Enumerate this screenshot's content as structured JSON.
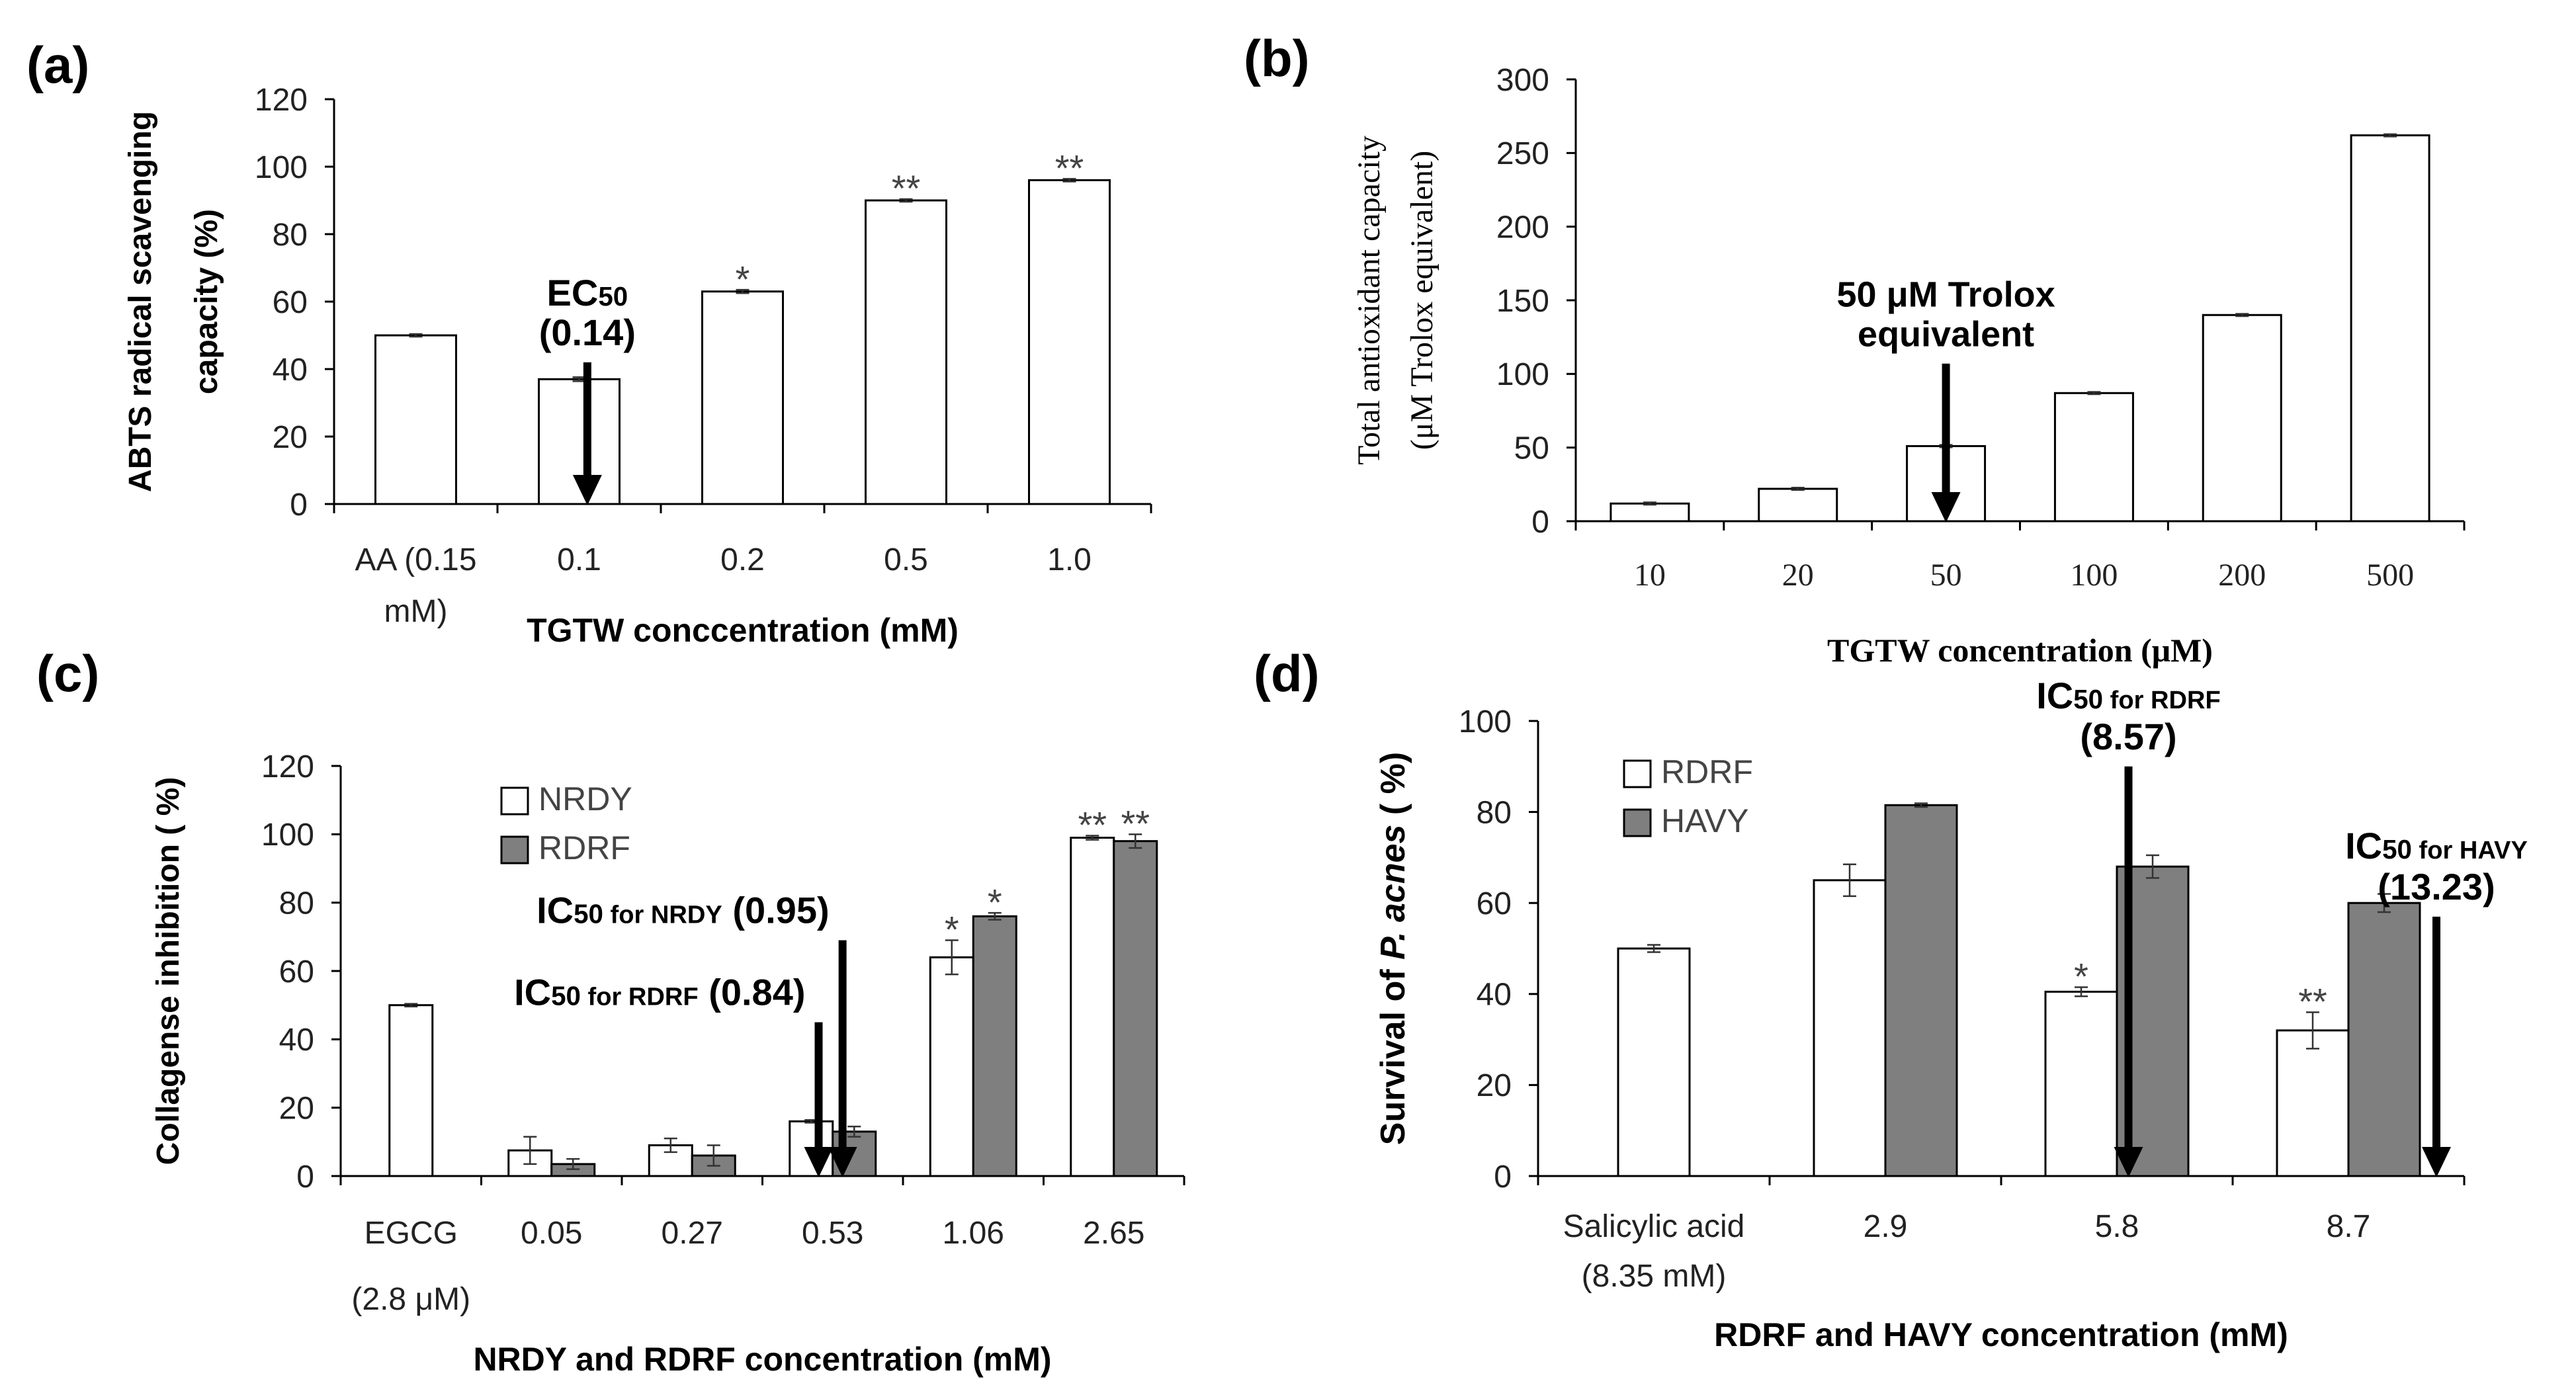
{
  "panels": [
    {
      "id": "a",
      "label": "(a)"
    },
    {
      "id": "b",
      "label": "(b)"
    },
    {
      "id": "c",
      "label": "(c)"
    },
    {
      "id": "d",
      "label": "(d)"
    }
  ],
  "chart_data": [
    {
      "panel": "a",
      "type": "bar",
      "categories": [
        "AA (0.15\nmM)",
        "0.1",
        "0.2",
        "0.5",
        "1.0"
      ],
      "series": [
        {
          "values": [
            50,
            37,
            63,
            90,
            96
          ],
          "errors": [
            0.4,
            0.6,
            0.5,
            0.4,
            0.4
          ],
          "color": "#ffffff"
        }
      ],
      "significance": [
        "",
        "",
        "*",
        "**",
        "**"
      ],
      "xlabel": "TGTW conccentration (mM)",
      "ylabel": [
        "ABTS radical scavenging",
        "capacity (%)"
      ],
      "ylim": [
        0,
        120
      ],
      "yticks": [
        0,
        20,
        40,
        60,
        80,
        100,
        120
      ],
      "grid": false,
      "annotations": [
        {
          "lines": [
            [
              {
                "t": "EC"
              },
              {
                "t": "50",
                "sub": true
              }
            ],
            [
              {
                "t": "(0.14)"
              }
            ]
          ],
          "at_x": 1.55,
          "arrow_top": 42
        }
      ]
    },
    {
      "panel": "b",
      "type": "bar",
      "categories": [
        "10",
        "20",
        "50",
        "100",
        "200",
        "500"
      ],
      "series": [
        {
          "values": [
            12,
            22,
            51,
            87,
            140,
            262
          ],
          "errors": [
            0.8,
            0.8,
            0.8,
            0.8,
            0.8,
            0.8
          ],
          "color": "#ffffff"
        }
      ],
      "xlabel": "TGTW  concentration (μM)",
      "ylabel": [
        "Total antioxidant capacity",
        "(μM Trolox equivalent)"
      ],
      "ylim": [
        0,
        300
      ],
      "yticks": [
        0,
        50,
        100,
        150,
        200,
        250,
        300
      ],
      "grid": false,
      "annotations": [
        {
          "lines": [
            [
              {
                "t": "50 μM Trolox"
              }
            ],
            [
              {
                "t": "equivalent"
              }
            ]
          ],
          "at_x": 2.5,
          "arrow_top": 107
        }
      ]
    },
    {
      "panel": "c",
      "type": "bar",
      "categories": [
        "EGCG\n(2.8 μM)",
        "0.05",
        "0.27",
        "0.53",
        "1.06",
        "2.65"
      ],
      "series": [
        {
          "name": "NRDY",
          "values": [
            50,
            7.5,
            9,
            16,
            64,
            99
          ],
          "errors": [
            0.4,
            4,
            2,
            0.4,
            5,
            0.6
          ],
          "color": "#ffffff"
        },
        {
          "name": "RDRF",
          "values": [
            null,
            3.5,
            6,
            13,
            76,
            98
          ],
          "errors": [
            0,
            1.5,
            3,
            1.5,
            1,
            2
          ],
          "color": "#7f7f7f"
        }
      ],
      "significance": [
        [
          "",
          "",
          "",
          "",
          "*",
          "**"
        ],
        [
          "",
          "",
          "",
          "",
          "*",
          "**"
        ]
      ],
      "xlabel": "NRDY and  RDRF concentration (mM)",
      "ylabel": [
        "Collagense inhibition ( %)"
      ],
      "ylim": [
        0,
        120
      ],
      "yticks": [
        0,
        20,
        40,
        60,
        80,
        100,
        120
      ],
      "grid": false,
      "legend": "top-left",
      "annotations": [
        {
          "lines": [
            [
              {
                "t": "IC"
              },
              {
                "t": "50",
                "sub": true
              },
              {
                "t": " for NRDY",
                "small": true
              },
              {
                "t": " (0.95)"
              }
            ]
          ],
          "at_x": 3.57,
          "arrow_top": 69
        },
        {
          "lines": [
            [
              {
                "t": "IC"
              },
              {
                "t": "50",
                "sub": true
              },
              {
                "t": " for RDRF",
                "small": true
              },
              {
                "t": " (0.84)"
              }
            ]
          ],
          "at_x": 3.4,
          "arrow_top": 45
        }
      ]
    },
    {
      "panel": "d",
      "type": "bar",
      "categories": [
        "Salicylic acid\n(8.35 mM)",
        "2.9",
        "5.8",
        "8.7"
      ],
      "series": [
        {
          "name": "RDRF",
          "values": [
            50,
            65,
            40.5,
            32
          ],
          "errors": [
            0.8,
            3.5,
            1,
            4
          ],
          "color": "#ffffff"
        },
        {
          "name": "HAVY",
          "values": [
            null,
            81.5,
            68,
            60
          ],
          "errors": [
            0,
            0.4,
            2.5,
            2
          ],
          "color": "#7f7f7f"
        }
      ],
      "significance": [
        [
          "",
          "",
          "*",
          "**"
        ],
        [
          "",
          "",
          "",
          ""
        ]
      ],
      "xlabel": "RDRF and HAVY concentration (mM)",
      "ylabel": [
        [
          {
            "t": "Survival of "
          },
          {
            "t": "P. acnes",
            "italic": true
          },
          {
            "t": " ( %)"
          }
        ]
      ],
      "ylim": [
        0,
        100
      ],
      "yticks": [
        0,
        20,
        40,
        60,
        80,
        100
      ],
      "grid": false,
      "legend": "top-left",
      "annotations": [
        {
          "lines": [
            [
              {
                "t": "IC"
              },
              {
                "t": "50",
                "sub": true
              },
              {
                "t": " for RDRF",
                "small": true
              }
            ],
            [
              {
                "t": "(8.57)"
              }
            ]
          ],
          "at_x": 2.55,
          "arrow_top": 90
        },
        {
          "lines": [
            [
              {
                "t": "IC"
              },
              {
                "t": "50",
                "sub": true
              },
              {
                "t": " for HAVY",
                "small": true
              }
            ],
            [
              {
                "t": "(13.23)"
              }
            ]
          ],
          "at_x": 3.88,
          "arrow_top": 57
        }
      ]
    }
  ]
}
